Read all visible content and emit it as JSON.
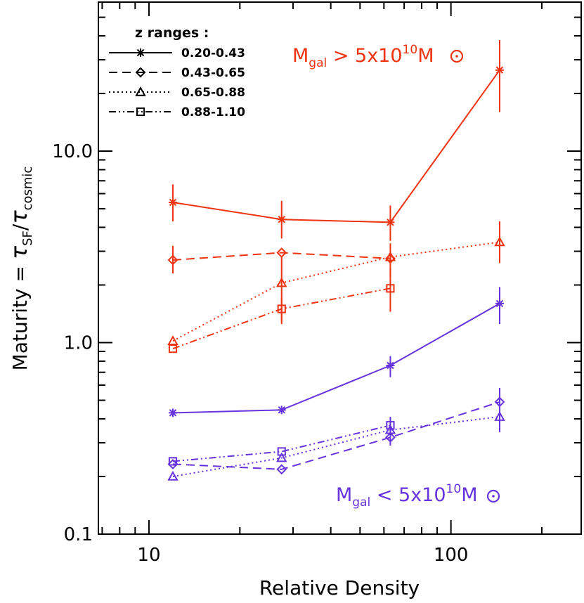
{
  "chart_data": {
    "type": "line",
    "x_scale": "log",
    "y_scale": "log",
    "xlim": [
      6.8,
      270
    ],
    "ylim": [
      0.1,
      60
    ],
    "xlabel": "Relative Density",
    "ylabel": {
      "prefix": "Maturity = ",
      "tau1": "τ",
      "sub1": "SF",
      "slash": "/",
      "tau2": "τ",
      "sub2": "cosmic"
    },
    "x_ticks": [
      {
        "value": 10,
        "label": "10"
      },
      {
        "value": 100,
        "label": "100"
      }
    ],
    "y_ticks": [
      {
        "value": 0.1,
        "label": "0.1"
      },
      {
        "value": 1.0,
        "label": "1.0"
      },
      {
        "value": 10.0,
        "label": "10.0"
      }
    ],
    "grid": false,
    "legend": {
      "title": "z ranges :",
      "position": "top-left",
      "entries": [
        {
          "label": "0.20-0.43",
          "linestyle": "solid",
          "marker": "asterisk"
        },
        {
          "label": "0.43-0.65",
          "linestyle": "dashed",
          "marker": "diamond"
        },
        {
          "label": "0.65-0.88",
          "linestyle": "dotted",
          "marker": "triangle"
        },
        {
          "label": "0.88-1.10",
          "linestyle": "dashdotdot",
          "marker": "square"
        }
      ]
    },
    "annotations": [
      {
        "id": "high",
        "pre": "M",
        "sub": "gal",
        "mid": " > 5x10",
        "sup": "10",
        "post": "M",
        "color": "#ee3311"
      },
      {
        "id": "low",
        "pre": "M",
        "sub": "gal",
        "mid": " < 5x10",
        "sup": "10",
        "post": "M",
        "color": "#6633dd"
      }
    ],
    "colors": {
      "high_mass": "#ee3311",
      "low_mass": "#6633dd"
    },
    "series": [
      {
        "group": "high",
        "z": "0.20-0.43",
        "linestyle": "solid",
        "marker": "asterisk",
        "color": "#ee3311",
        "x": [
          12,
          27.5,
          63,
          145
        ],
        "y": [
          5.4,
          4.4,
          4.25,
          26.5
        ],
        "err_lo": [
          4.3,
          3.5,
          3.4,
          16.0
        ],
        "err_hi": [
          6.7,
          5.5,
          5.2,
          38.0
        ]
      },
      {
        "group": "high",
        "z": "0.43-0.65",
        "linestyle": "dashed",
        "marker": "diamond",
        "color": "#ee3311",
        "x": [
          12,
          27.5,
          63
        ],
        "y": [
          2.7,
          2.95,
          2.75
        ],
        "err_lo": [
          2.3,
          null,
          null
        ],
        "err_hi": [
          3.2,
          null,
          null
        ]
      },
      {
        "group": "high",
        "z": "0.65-0.88",
        "linestyle": "dotted",
        "marker": "triangle",
        "color": "#ee3311",
        "x": [
          12,
          27.5,
          63,
          145
        ],
        "y": [
          1.02,
          2.05,
          2.8,
          3.35
        ],
        "err_lo": [
          null,
          1.25,
          2.2,
          2.6
        ],
        "err_hi": [
          null,
          2.8,
          3.3,
          4.3
        ]
      },
      {
        "group": "high",
        "z": "0.88-1.10",
        "linestyle": "dashdotdot",
        "marker": "square",
        "color": "#ee3311",
        "x": [
          12,
          27.5,
          63
        ],
        "y": [
          0.93,
          1.5,
          1.92
        ],
        "err_lo": [
          null,
          1.3,
          1.45
        ],
        "err_hi": [
          null,
          1.7,
          2.45
        ]
      },
      {
        "group": "low",
        "z": "0.20-0.43",
        "linestyle": "solid",
        "marker": "asterisk",
        "color": "#6633dd",
        "x": [
          12,
          27.5,
          63,
          145
        ],
        "y": [
          0.43,
          0.445,
          0.76,
          1.6
        ],
        "err_lo": [
          null,
          null,
          0.66,
          1.25
        ],
        "err_hi": [
          null,
          null,
          0.85,
          1.95
        ]
      },
      {
        "group": "low",
        "z": "0.43-0.65",
        "linestyle": "dashed",
        "marker": "diamond",
        "color": "#6633dd",
        "x": [
          12,
          27.5,
          63,
          145
        ],
        "y": [
          0.232,
          0.218,
          0.32,
          0.49
        ],
        "err_lo": [
          null,
          null,
          0.29,
          0.43
        ],
        "err_hi": [
          null,
          null,
          0.35,
          0.58
        ]
      },
      {
        "group": "low",
        "z": "0.65-0.88",
        "linestyle": "dotted",
        "marker": "triangle",
        "color": "#6633dd",
        "x": [
          12,
          27.5,
          63,
          145
        ],
        "y": [
          0.2,
          0.25,
          0.35,
          0.41
        ],
        "err_lo": [
          null,
          null,
          null,
          0.34
        ],
        "err_hi": [
          null,
          null,
          null,
          0.46
        ]
      },
      {
        "group": "low",
        "z": "0.88-1.10",
        "linestyle": "dashdotdot",
        "marker": "square",
        "color": "#6633dd",
        "x": [
          12,
          27.5,
          63
        ],
        "y": [
          0.24,
          0.27,
          0.37
        ],
        "err_lo": [
          null,
          null,
          0.33
        ],
        "err_hi": [
          null,
          null,
          0.41
        ]
      }
    ]
  }
}
